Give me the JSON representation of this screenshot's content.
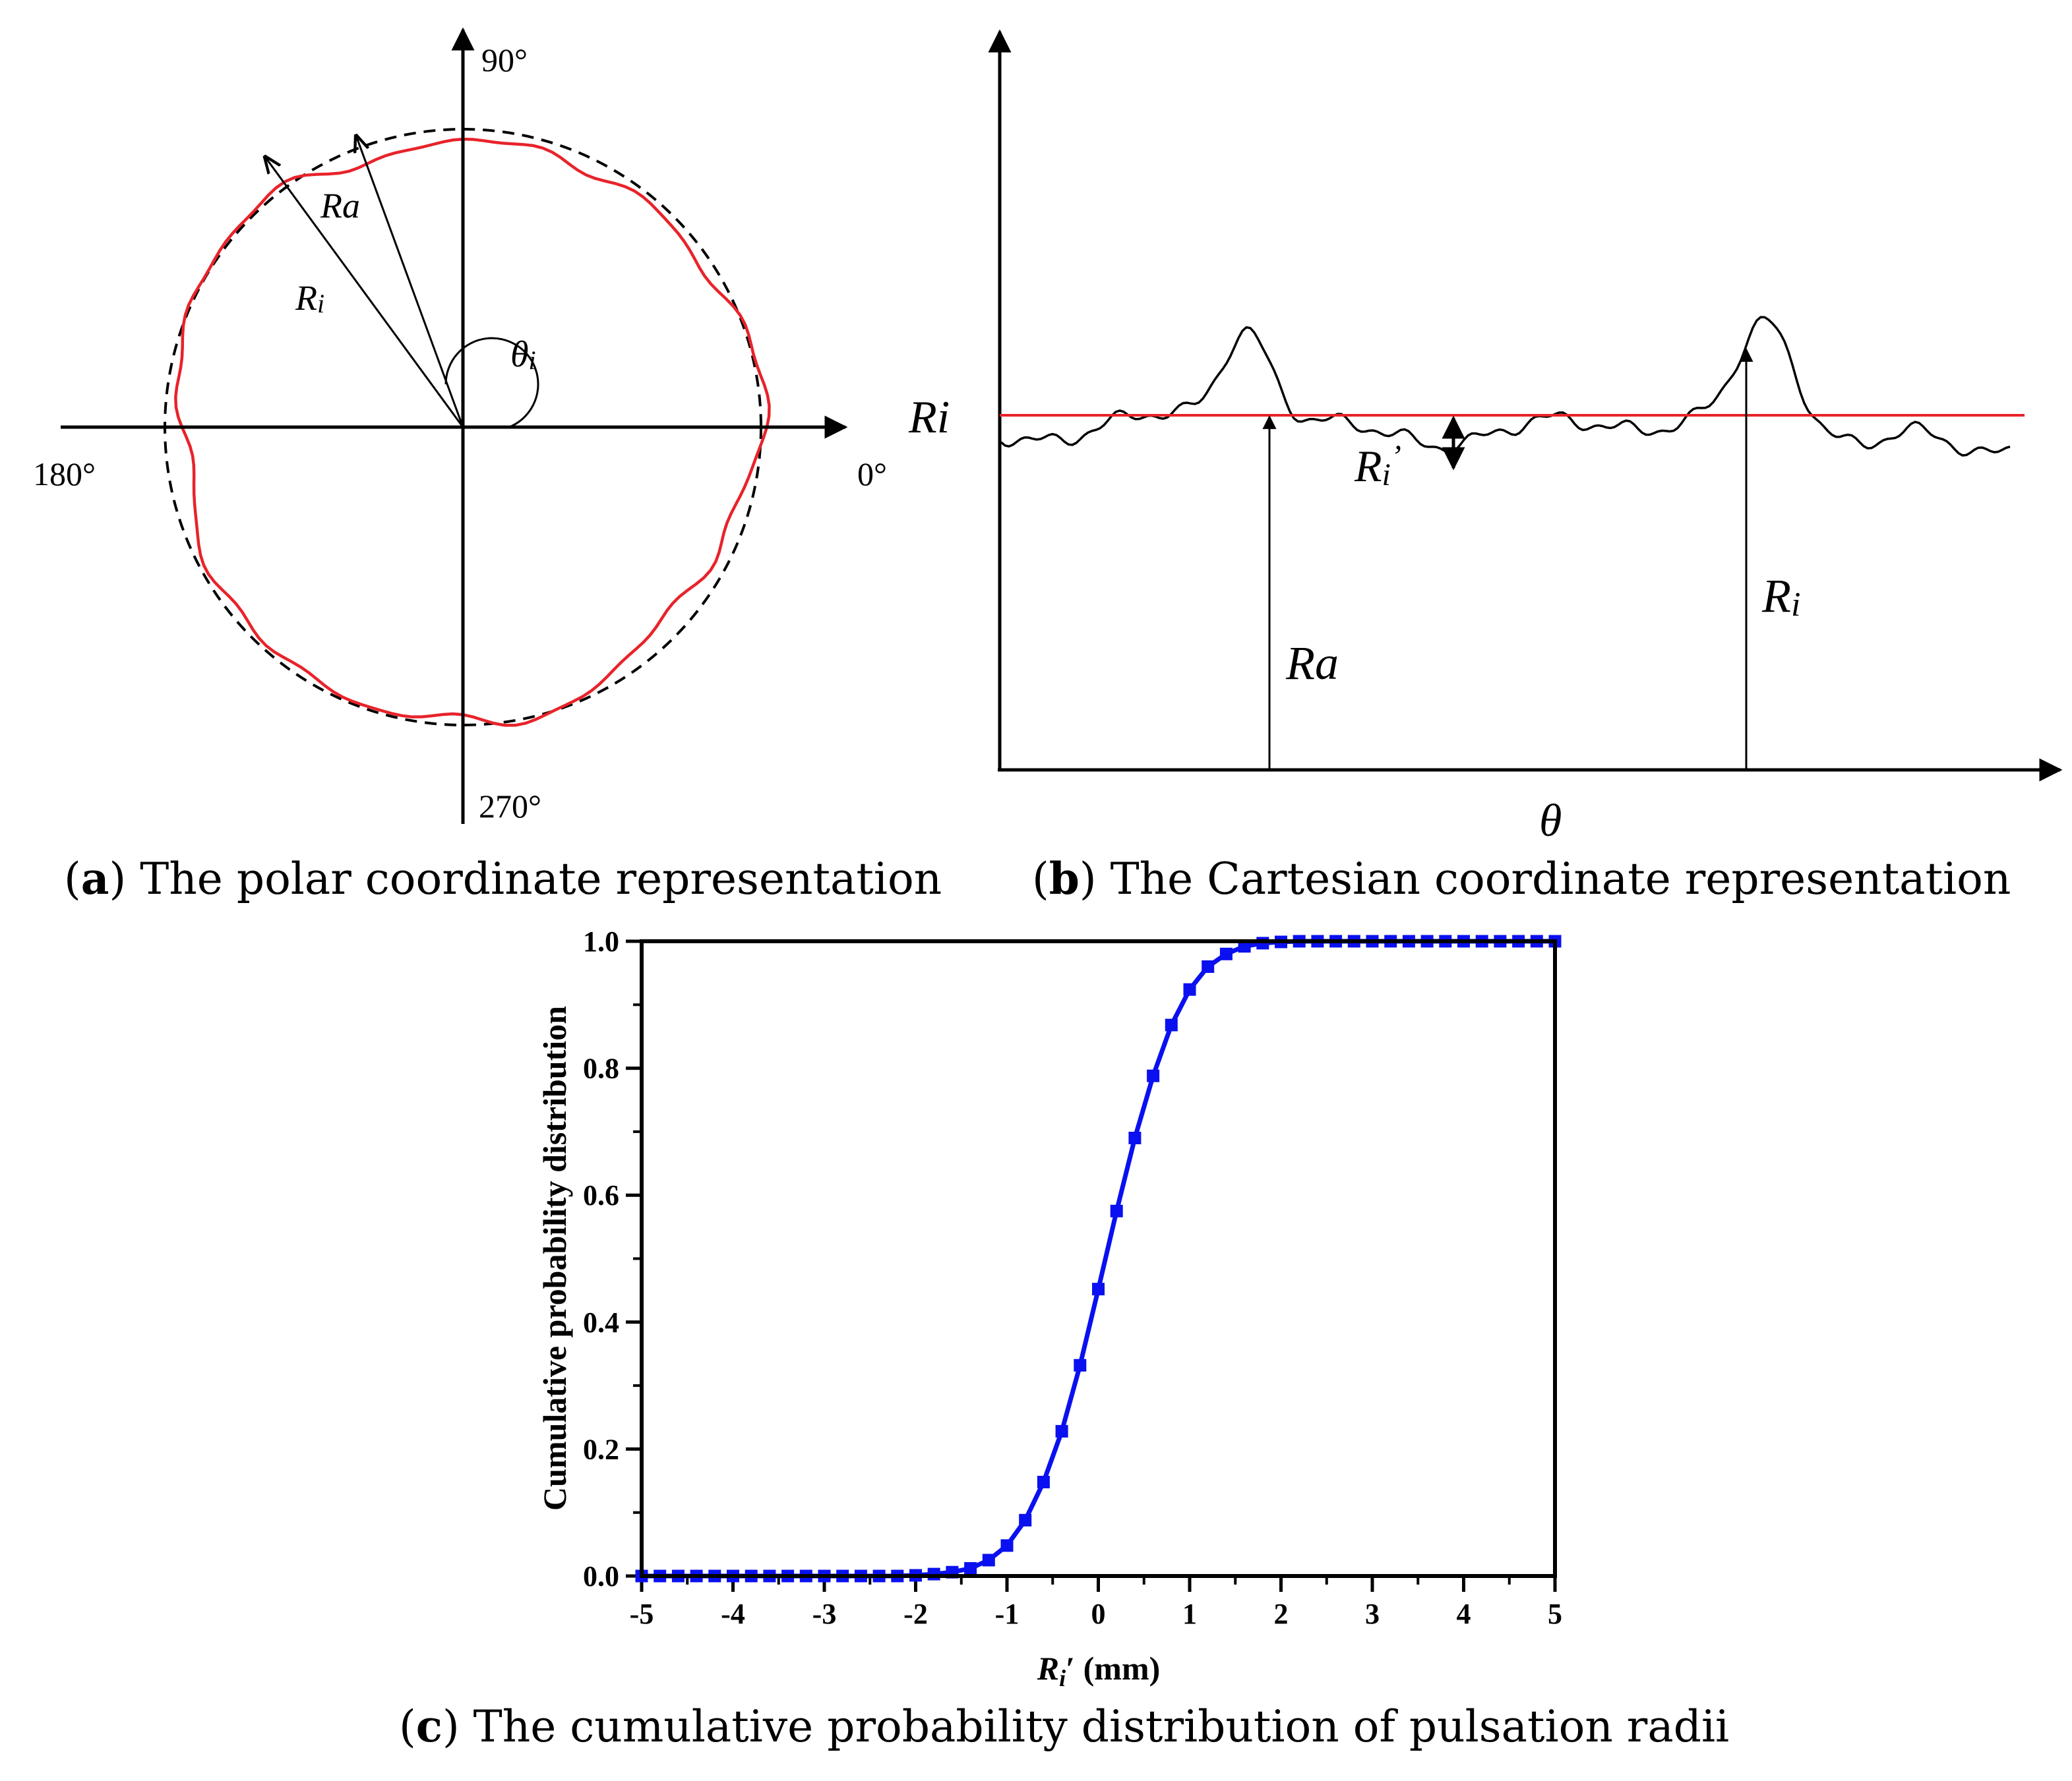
{
  "panel_a": {
    "caption_letter": "a",
    "caption_text": "The polar coordinate representation",
    "angle_labels": {
      "top": "90°",
      "left": "180°",
      "right": "0°",
      "bottom": "270°"
    },
    "labels": {
      "ra": "Ra",
      "ri_base": "R",
      "ri_sub": "i",
      "theta_base": "θ",
      "theta_sub": "i"
    },
    "colors": {
      "profile": "#e8232a",
      "reference_circle": "#000000"
    }
  },
  "panel_b": {
    "caption_letter": "b",
    "caption_text": "The Cartesian coordinate representation",
    "labels": {
      "ri_left": "Ri",
      "ri_prime_base": "R",
      "ri_prime_sub": "i",
      "ri_prime_mark": "’",
      "ra": "Ra",
      "ri_right_base": "R",
      "ri_right_sub": "i",
      "theta": "θ"
    },
    "colors": {
      "reference_line": "#e8232a",
      "profile": "#000000"
    }
  },
  "panel_c": {
    "caption_letter": "c",
    "caption_text": "The cumulative probability distribution of pulsation radii"
  },
  "chart_data": {
    "type": "line",
    "title": "",
    "xlabel_base": "R",
    "xlabel_sub": "i",
    "xlabel_rest": "′ (mm)",
    "ylabel": "Cumulative probability distribution",
    "xlim": [
      -5,
      5
    ],
    "ylim": [
      0,
      1
    ],
    "x_ticks": [
      "-5",
      "-4",
      "-3",
      "-2",
      "-1",
      "0",
      "1",
      "2",
      "3",
      "4",
      "5"
    ],
    "y_ticks": [
      "0.0",
      "0.2",
      "0.4",
      "0.6",
      "0.8",
      "1.0"
    ],
    "marker": "square",
    "color": "#0a10f0",
    "x": [
      -5.0,
      -4.8,
      -4.6,
      -4.4,
      -4.2,
      -4.0,
      -3.8,
      -3.6,
      -3.4,
      -3.2,
      -3.0,
      -2.8,
      -2.6,
      -2.4,
      -2.2,
      -2.0,
      -1.8,
      -1.6,
      -1.4,
      -1.2,
      -1.0,
      -0.8,
      -0.6,
      -0.4,
      -0.2,
      0.0,
      0.2,
      0.4,
      0.6,
      0.8,
      1.0,
      1.2,
      1.4,
      1.6,
      1.8,
      2.0,
      2.2,
      2.4,
      2.6,
      2.8,
      3.0,
      3.2,
      3.4,
      3.6,
      3.8,
      4.0,
      4.2,
      4.4,
      4.6,
      4.8,
      5.0
    ],
    "y": [
      0.0,
      0.0,
      0.0,
      0.0,
      0.0,
      0.0,
      0.0,
      0.0,
      0.0,
      0.0,
      0.0,
      0.0,
      0.0,
      0.0,
      0.0,
      0.001,
      0.003,
      0.006,
      0.012,
      0.025,
      0.048,
      0.088,
      0.148,
      0.228,
      0.332,
      0.452,
      0.575,
      0.69,
      0.788,
      0.868,
      0.924,
      0.96,
      0.98,
      0.992,
      0.997,
      0.999,
      1.0,
      1.0,
      1.0,
      1.0,
      1.0,
      1.0,
      1.0,
      1.0,
      1.0,
      1.0,
      1.0,
      1.0,
      1.0,
      1.0,
      1.0
    ]
  }
}
